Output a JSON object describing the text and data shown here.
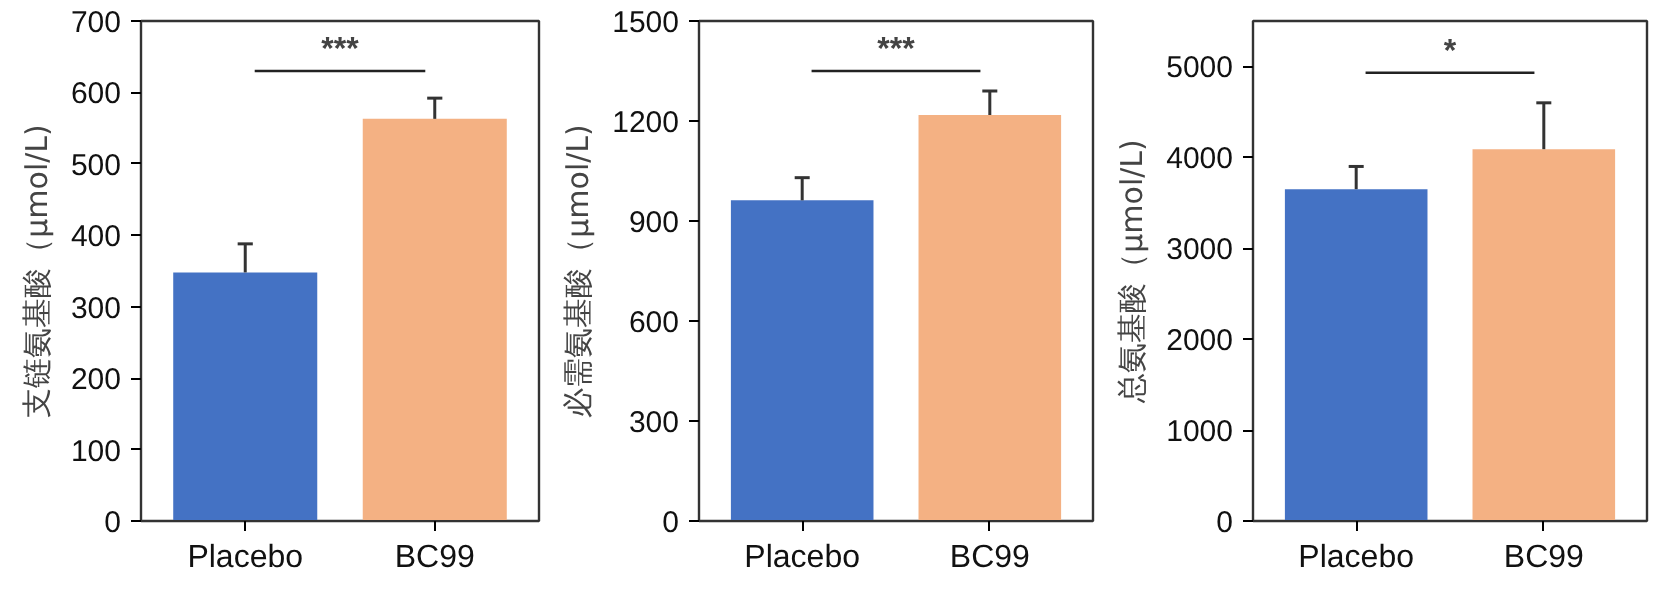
{
  "chart_data": [
    {
      "type": "bar",
      "ylabel": "支链氨基酸（μmol/L)",
      "categories": [
        "Placebo",
        "BC99"
      ],
      "values": [
        348,
        563
      ],
      "colors": [
        "#4472c4",
        "#f4b183"
      ],
      "errors": [
        [
          348,
          388
        ],
        [
          563,
          592
        ]
      ],
      "ylim": [
        0,
        700
      ],
      "yticks": [
        0,
        100,
        200,
        300,
        400,
        500,
        600,
        700
      ],
      "grid": false,
      "annotations": [
        "***"
      ]
    },
    {
      "type": "bar",
      "ylabel": "必需氨基酸（μmol/L)",
      "categories": [
        "Placebo",
        "BC99"
      ],
      "values": [
        962,
        1218
      ],
      "colors": [
        "#4472c4",
        "#f4b183"
      ],
      "errors": [
        [
          962,
          1030
        ],
        [
          1218,
          1290
        ]
      ],
      "ylim": [
        0,
        1500
      ],
      "yticks": [
        0,
        300,
        600,
        900,
        1200,
        1500
      ],
      "grid": false,
      "annotations": [
        "***"
      ]
    },
    {
      "type": "bar",
      "ylabel": "总氨基酸（μmol/L)",
      "categories": [
        "Placebo",
        "BC99"
      ],
      "values": [
        3650,
        4090
      ],
      "colors": [
        "#4472c4",
        "#f4b183"
      ],
      "errors": [
        [
          3650,
          3900
        ],
        [
          4090,
          4600
        ]
      ],
      "ylim": [
        0,
        5500
      ],
      "yticks": [
        0,
        1000,
        2000,
        3000,
        4000,
        5000
      ],
      "grid": false,
      "annotations": [
        "*"
      ]
    }
  ]
}
